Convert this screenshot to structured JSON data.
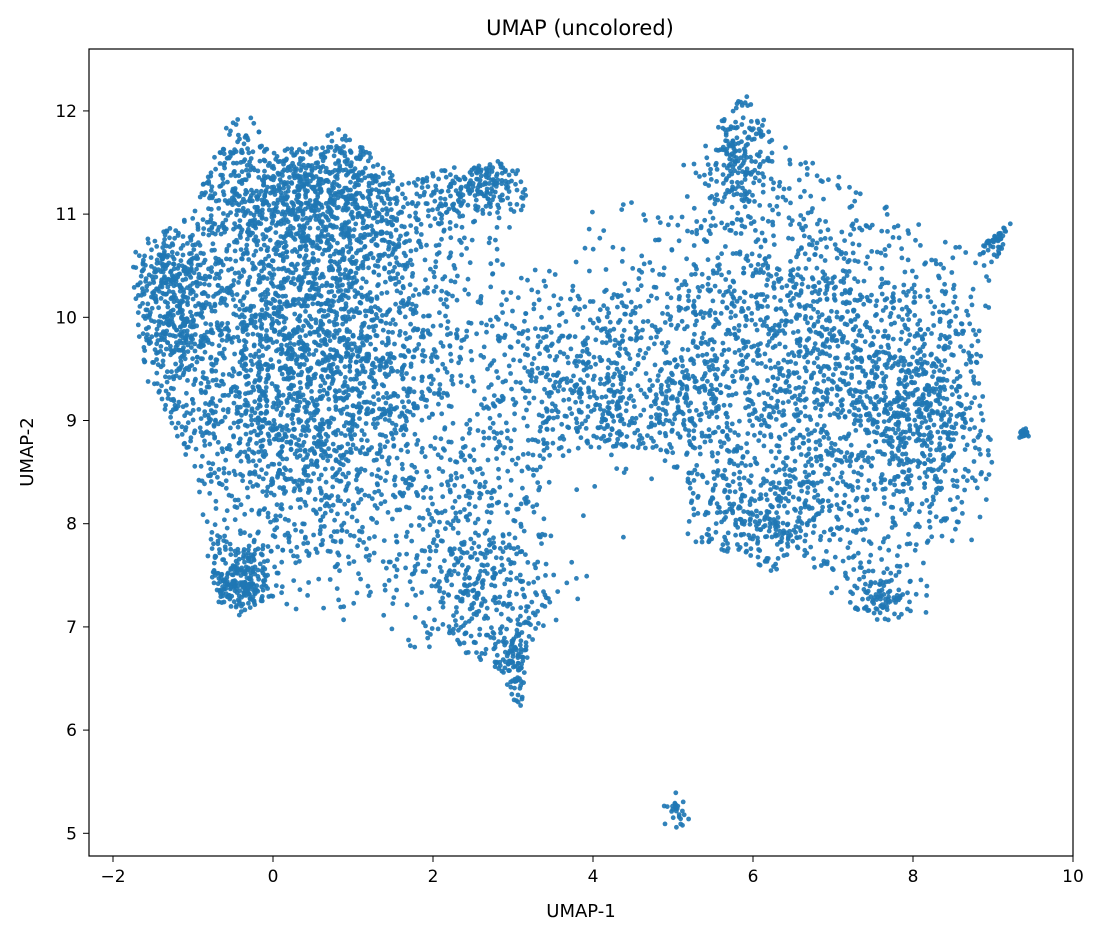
{
  "chart_data": {
    "type": "scatter",
    "title": "UMAP (uncolored)",
    "xlabel": "UMAP-1",
    "ylabel": "UMAP-2",
    "xlim": [
      -2.3,
      10.0
    ],
    "ylim": [
      4.78,
      12.6
    ],
    "xticks": [
      -2,
      0,
      2,
      4,
      6,
      8,
      10
    ],
    "yticks": [
      5,
      6,
      7,
      8,
      9,
      10,
      11,
      12
    ],
    "grid": false,
    "legend": "none",
    "point_color": "#1f77b4",
    "clusters": [
      {
        "region": "left-lobe",
        "cx": 0.4,
        "cy": 9.6,
        "sx": 1.05,
        "sy": 1.1,
        "weight": 0.34
      },
      {
        "region": "upper-left-top",
        "cx": 0.5,
        "cy": 11.2,
        "sx": 0.9,
        "sy": 0.4,
        "weight": 0.09
      },
      {
        "region": "left-edge",
        "cx": -1.3,
        "cy": 10.2,
        "sx": 0.25,
        "sy": 0.45,
        "weight": 0.04
      },
      {
        "region": "lower-left-blob",
        "cx": -0.4,
        "cy": 7.45,
        "sx": 0.2,
        "sy": 0.2,
        "weight": 0.025
      },
      {
        "region": "upper-middle-arm",
        "cx": 2.6,
        "cy": 11.3,
        "sx": 0.3,
        "sy": 0.15,
        "weight": 0.02
      },
      {
        "region": "center-stem",
        "cx": 2.6,
        "cy": 7.5,
        "sx": 0.5,
        "sy": 0.55,
        "weight": 0.05
      },
      {
        "region": "stem-tail",
        "cx": 3.0,
        "cy": 6.6,
        "sx": 0.12,
        "sy": 0.25,
        "weight": 0.012
      },
      {
        "region": "middle-band",
        "cx": 4.2,
        "cy": 9.3,
        "sx": 0.9,
        "sy": 0.55,
        "weight": 0.09
      },
      {
        "region": "right-lobe",
        "cx": 6.8,
        "cy": 9.6,
        "sx": 1.2,
        "sy": 1.0,
        "weight": 0.2
      },
      {
        "region": "right-top-peak",
        "cx": 5.85,
        "cy": 11.6,
        "sx": 0.2,
        "sy": 0.35,
        "weight": 0.02
      },
      {
        "region": "right-mid",
        "cx": 8.1,
        "cy": 9.0,
        "sx": 0.45,
        "sy": 0.5,
        "weight": 0.05
      },
      {
        "region": "right-lower",
        "cx": 6.2,
        "cy": 8.0,
        "sx": 0.6,
        "sy": 0.25,
        "weight": 0.03
      },
      {
        "region": "right-bottom",
        "cx": 7.6,
        "cy": 7.3,
        "sx": 0.25,
        "sy": 0.15,
        "weight": 0.012
      },
      {
        "region": "right-arm",
        "cx": 9.0,
        "cy": 10.8,
        "sx": 0.15,
        "sy": 0.1,
        "weight": 0.006
      },
      {
        "region": "far-right-islet",
        "cx": 9.4,
        "cy": 8.87,
        "sx": 0.03,
        "sy": 0.02,
        "weight": 0.002
      },
      {
        "region": "bottom-islet",
        "cx": 5.05,
        "cy": 5.22,
        "sx": 0.07,
        "sy": 0.08,
        "weight": 0.003
      }
    ],
    "approx_points": 9000
  }
}
